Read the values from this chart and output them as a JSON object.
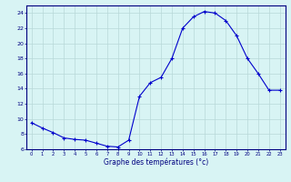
{
  "hours": [
    0,
    1,
    2,
    3,
    4,
    5,
    6,
    7,
    8,
    9,
    10,
    11,
    12,
    13,
    14,
    15,
    16,
    17,
    18,
    19,
    20,
    21,
    22,
    23
  ],
  "temperatures": [
    9.5,
    8.8,
    8.2,
    7.5,
    7.3,
    7.2,
    6.8,
    6.4,
    6.3,
    7.2,
    13.0,
    14.8,
    15.5,
    18.0,
    22.0,
    23.5,
    24.2,
    24.0,
    23.0,
    21.0,
    18.0,
    16.0,
    13.8,
    13.8
  ],
  "bg_color": "#d8f4f4",
  "line_color": "#0000cc",
  "marker_color": "#0000cc",
  "grid_major_color": "#b8d8d8",
  "grid_minor_color": "#c8e8e8",
  "axis_color": "#000080",
  "tick_color": "#000080",
  "xlabel": "Graphe des températures (°c)",
  "ylim": [
    6,
    25
  ],
  "yticks": [
    6,
    8,
    10,
    12,
    14,
    16,
    18,
    20,
    22,
    24
  ],
  "xticks": [
    0,
    1,
    2,
    3,
    4,
    5,
    6,
    7,
    8,
    9,
    10,
    11,
    12,
    13,
    14,
    15,
    16,
    17,
    18,
    19,
    20,
    21,
    22,
    23
  ],
  "border_color": "#000080"
}
